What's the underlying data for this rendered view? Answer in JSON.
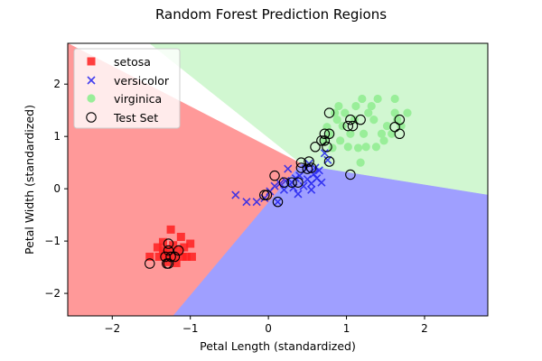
{
  "chart_data": {
    "type": "scatter",
    "title": "Random Forest Prediction Regions",
    "xlabel": "Petal Length (standardized)",
    "ylabel": "Petal Width (standardized)",
    "xlim": [
      -2.57,
      2.81
    ],
    "ylim": [
      -2.43,
      2.78
    ],
    "x_ticks": [
      -2,
      -1,
      0,
      1,
      2
    ],
    "y_ticks": [
      -2,
      -1,
      0,
      1,
      2
    ],
    "grid": false,
    "legend_position": "top-left",
    "regions": [
      {
        "class": "setosa",
        "color": "#ff9999",
        "polygon": [
          [
            -2.57,
            2.78
          ],
          [
            0.42,
            0.48
          ],
          [
            -1.22,
            -2.43
          ],
          [
            -2.57,
            -2.43
          ]
        ]
      },
      {
        "class": "virginica",
        "color": "#d1f7d1",
        "polygon": [
          [
            -1.52,
            2.78
          ],
          [
            2.81,
            2.78
          ],
          [
            2.81,
            -0.12
          ],
          [
            0.64,
            0.4
          ],
          [
            0.42,
            0.48
          ]
        ]
      },
      {
        "class": "versicolor",
        "color": "#9f9fff",
        "polygon": [
          [
            0.42,
            0.48
          ],
          [
            0.64,
            0.4
          ],
          [
            2.81,
            -0.12
          ],
          [
            2.81,
            -2.43
          ],
          [
            -1.22,
            -2.43
          ]
        ]
      }
    ],
    "series": [
      {
        "name": "setosa",
        "marker": "square",
        "color": "#ff2020",
        "points": [
          [
            -1.52,
            -1.3
          ],
          [
            -1.4,
            -1.3
          ],
          [
            -1.35,
            -1.18
          ],
          [
            -1.3,
            -1.4
          ],
          [
            -1.28,
            -1.18
          ],
          [
            -1.28,
            -1.3
          ],
          [
            -1.22,
            -1.08
          ],
          [
            -1.2,
            -1.3
          ],
          [
            -1.15,
            -1.18
          ],
          [
            -1.12,
            -0.92
          ],
          [
            -1.1,
            -1.3
          ],
          [
            -1.08,
            -1.12
          ],
          [
            -1.05,
            -1.3
          ],
          [
            -1.0,
            -1.05
          ],
          [
            -0.98,
            -1.3
          ],
          [
            -1.25,
            -0.78
          ],
          [
            -1.35,
            -1.02
          ],
          [
            -1.42,
            -1.12
          ],
          [
            -1.18,
            -1.42
          ],
          [
            -1.32,
            -1.25
          ]
        ]
      },
      {
        "name": "versicolor",
        "marker": "x",
        "color": "#2222ee",
        "points": [
          [
            -0.42,
            -0.12
          ],
          [
            -0.28,
            -0.25
          ],
          [
            -0.15,
            -0.25
          ],
          [
            -0.05,
            -0.18
          ],
          [
            0.02,
            -0.05
          ],
          [
            0.08,
            0.05
          ],
          [
            0.12,
            -0.25
          ],
          [
            0.15,
            0.1
          ],
          [
            0.2,
            -0.02
          ],
          [
            0.22,
            0.15
          ],
          [
            0.25,
            0.38
          ],
          [
            0.3,
            0.12
          ],
          [
            0.32,
            0.02
          ],
          [
            0.35,
            0.2
          ],
          [
            0.38,
            -0.1
          ],
          [
            0.4,
            0.25
          ],
          [
            0.45,
            0.05
          ],
          [
            0.48,
            0.38
          ],
          [
            0.5,
            0.18
          ],
          [
            0.52,
            0.48
          ],
          [
            0.55,
            0.1
          ],
          [
            0.55,
            -0.02
          ],
          [
            0.58,
            0.28
          ],
          [
            0.6,
            0.4
          ],
          [
            0.62,
            0.2
          ],
          [
            0.65,
            0.35
          ],
          [
            0.68,
            0.12
          ],
          [
            0.72,
            0.68
          ],
          [
            0.76,
            0.55
          ]
        ]
      },
      {
        "name": "virginica",
        "marker": "circle",
        "color": "#99ee99",
        "points": [
          [
            0.72,
            0.92
          ],
          [
            0.75,
            1.18
          ],
          [
            0.78,
            1.05
          ],
          [
            0.82,
            0.78
          ],
          [
            0.85,
            1.45
          ],
          [
            0.88,
            1.32
          ],
          [
            0.92,
            0.92
          ],
          [
            0.95,
            1.2
          ],
          [
            0.98,
            1.45
          ],
          [
            1.02,
            0.8
          ],
          [
            1.05,
            1.05
          ],
          [
            1.1,
            1.32
          ],
          [
            1.12,
            1.58
          ],
          [
            1.15,
            0.78
          ],
          [
            1.18,
            0.5
          ],
          [
            1.22,
            1.05
          ],
          [
            1.25,
            0.8
          ],
          [
            1.28,
            1.45
          ],
          [
            1.32,
            1.58
          ],
          [
            1.35,
            1.32
          ],
          [
            1.38,
            0.8
          ],
          [
            1.4,
            1.72
          ],
          [
            1.45,
            1.05
          ],
          [
            1.48,
            0.92
          ],
          [
            1.52,
            1.2
          ],
          [
            1.58,
            1.05
          ],
          [
            1.62,
            1.45
          ],
          [
            1.65,
            1.32
          ],
          [
            1.7,
            1.2
          ],
          [
            1.78,
            1.45
          ],
          [
            1.62,
            1.72
          ],
          [
            1.2,
            1.72
          ],
          [
            0.9,
            1.58
          ]
        ]
      },
      {
        "name": "Test Set",
        "marker": "open-circle",
        "color": "#000000",
        "points": [
          [
            -1.52,
            -1.43
          ],
          [
            -1.32,
            -1.3
          ],
          [
            -1.3,
            -1.43
          ],
          [
            -1.28,
            -1.18
          ],
          [
            -1.25,
            -1.3
          ],
          [
            -1.28,
            -1.05
          ],
          [
            -1.2,
            -1.3
          ],
          [
            -1.15,
            -1.18
          ],
          [
            -1.28,
            -1.43
          ],
          [
            -0.05,
            -0.12
          ],
          [
            -0.02,
            -0.12
          ],
          [
            0.08,
            0.25
          ],
          [
            0.12,
            -0.25
          ],
          [
            0.2,
            0.12
          ],
          [
            0.3,
            0.12
          ],
          [
            0.38,
            0.12
          ],
          [
            0.42,
            0.4
          ],
          [
            0.42,
            0.5
          ],
          [
            0.5,
            0.38
          ],
          [
            0.52,
            0.52
          ],
          [
            0.55,
            0.4
          ],
          [
            0.6,
            0.8
          ],
          [
            0.68,
            0.92
          ],
          [
            0.72,
            1.05
          ],
          [
            0.72,
            0.92
          ],
          [
            0.75,
            0.8
          ],
          [
            0.78,
            1.45
          ],
          [
            0.78,
            0.52
          ],
          [
            0.78,
            1.05
          ],
          [
            1.02,
            1.2
          ],
          [
            1.05,
            0.27
          ],
          [
            1.05,
            1.32
          ],
          [
            1.08,
            1.2
          ],
          [
            1.18,
            1.32
          ],
          [
            1.62,
            1.18
          ],
          [
            1.68,
            1.05
          ],
          [
            1.68,
            1.32
          ]
        ]
      }
    ],
    "legend": [
      {
        "label": "setosa",
        "marker": "square",
        "color": "#ff2020"
      },
      {
        "label": "versicolor",
        "marker": "x",
        "color": "#2222ee"
      },
      {
        "label": "virginica",
        "marker": "circle",
        "color": "#99ee99"
      },
      {
        "label": "Test Set",
        "marker": "open-circle",
        "color": "#000000"
      }
    ]
  }
}
